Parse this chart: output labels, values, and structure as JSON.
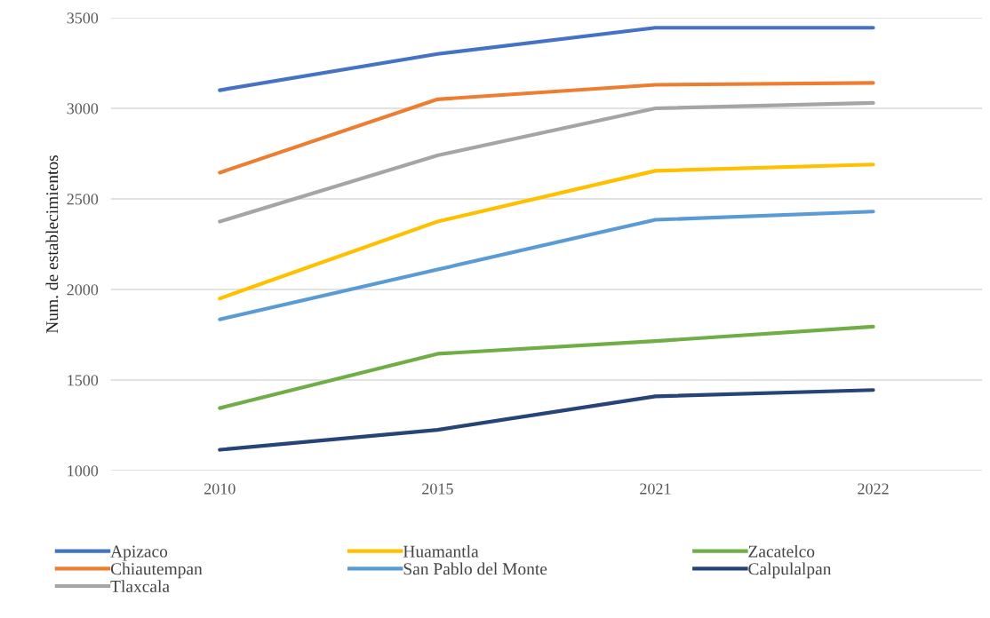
{
  "chart_data": {
    "type": "line",
    "ylabel": "Num. de establecimientos",
    "categories": [
      "2010",
      "2015",
      "2021",
      "2022"
    ],
    "series": [
      {
        "name": "Apizaco",
        "color": "#4472c4",
        "values": [
          3100,
          3300,
          3445,
          3445
        ]
      },
      {
        "name": "Chiautempan",
        "color": "#ed7d31",
        "values": [
          2645,
          3050,
          3130,
          3140
        ]
      },
      {
        "name": "Tlaxcala",
        "color": "#a5a5a5",
        "values": [
          2375,
          2740,
          3000,
          3030
        ]
      },
      {
        "name": "Huamantla",
        "color": "#ffc000",
        "values": [
          1950,
          2375,
          2655,
          2690
        ]
      },
      {
        "name": "San Pablo del Monte",
        "color": "#5b9bd5",
        "values": [
          1835,
          2110,
          2385,
          2430
        ]
      },
      {
        "name": "Zacatelco",
        "color": "#70ad47",
        "values": [
          1345,
          1645,
          1715,
          1795
        ]
      },
      {
        "name": "Calpulalpan",
        "color": "#264478",
        "values": [
          1115,
          1225,
          1410,
          1445
        ]
      }
    ],
    "ylim": [
      1000,
      3500
    ],
    "yticks": [
      1000,
      1500,
      2000,
      2500,
      3000,
      3500
    ],
    "grid": "y",
    "legend": "bottom",
    "marker": "none",
    "line_style": "solid"
  }
}
